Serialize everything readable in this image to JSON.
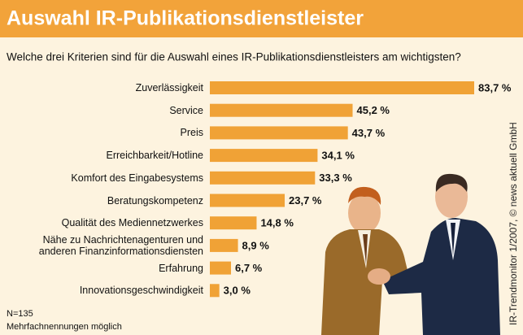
{
  "chart_data": {
    "type": "bar",
    "orientation": "horizontal",
    "title": "Auswahl IR-Publikationsdienstleister",
    "subtitle": "Welche drei Kriterien sind für die Auswahl eines IR-Publikationsdienstleisters am wichtigsten?",
    "categories": [
      "Zuverlässigkeit",
      "Service",
      "Preis",
      "Erreichbarkeit/Hotline",
      "Komfort des Eingabesystems",
      "Beratungskompetenz",
      "Qualität des Mediennetzwerkes",
      "Nähe zu Nachrichtenagenturen und\nanderen Finanzinformationsdiensten",
      "Erfahrung",
      "Innovationsgeschwindigkeit"
    ],
    "values": [
      83.7,
      45.2,
      43.7,
      34.1,
      33.3,
      23.7,
      14.8,
      8.9,
      6.7,
      3.0
    ],
    "value_labels": [
      "83,7 %",
      "45,2 %",
      "43,7 %",
      "34,1 %",
      "33,3 %",
      "23,7 %",
      "14,8 %",
      "8,9 %",
      "6,7 %",
      "3,0 %"
    ],
    "color": "#f0a236",
    "notes": [
      "N=135",
      "Mehrfachnennungen möglich"
    ],
    "source": "IR-Trendmonitor 1/2007, © news aktuell GmbH"
  }
}
